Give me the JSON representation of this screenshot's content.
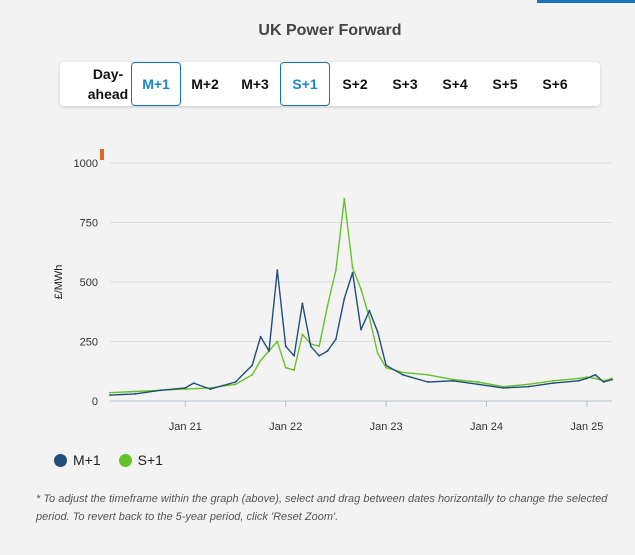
{
  "title": "UK Power Forward",
  "tabs": [
    {
      "label": "Day-ahead",
      "active": false
    },
    {
      "label": "M+1",
      "active": true
    },
    {
      "label": "M+2",
      "active": false
    },
    {
      "label": "M+3",
      "active": false
    },
    {
      "label": "S+1",
      "active": true
    },
    {
      "label": "S+2",
      "active": false
    },
    {
      "label": "S+3",
      "active": false
    },
    {
      "label": "S+4",
      "active": false
    },
    {
      "label": "S+5",
      "active": false
    },
    {
      "label": "S+6",
      "active": false
    }
  ],
  "chart_data": {
    "type": "line",
    "ylabel": "£/MWh",
    "yticks": [
      0,
      250,
      500,
      750,
      1000
    ],
    "ylim": [
      0,
      1000
    ],
    "xticks": [
      "Jan 21",
      "Jan 22",
      "Jan 23",
      "Jan 24",
      "Jan 25"
    ],
    "xlim": [
      "2020-04",
      "2025-04"
    ],
    "grid": true,
    "legend_position": "bottom-left",
    "series": [
      {
        "name": "M+1",
        "color": "#1f4e79",
        "x": [
          "2020-04",
          "2020-07",
          "2020-10",
          "2021-01",
          "2021-02",
          "2021-04",
          "2021-07",
          "2021-09",
          "2021-10",
          "2021-11",
          "2021-12",
          "2022-01",
          "2022-02",
          "2022-03",
          "2022-04",
          "2022-05",
          "2022-06",
          "2022-07",
          "2022-08",
          "2022-09",
          "2022-10",
          "2022-11",
          "2022-12",
          "2023-01",
          "2023-03",
          "2023-06",
          "2023-09",
          "2023-12",
          "2024-03",
          "2024-06",
          "2024-09",
          "2024-12",
          "2025-01",
          "2025-02",
          "2025-03",
          "2025-04"
        ],
        "values": [
          25,
          30,
          45,
          55,
          75,
          50,
          80,
          150,
          270,
          210,
          550,
          230,
          190,
          410,
          230,
          190,
          210,
          260,
          430,
          540,
          300,
          380,
          290,
          150,
          110,
          80,
          85,
          70,
          55,
          60,
          75,
          85,
          95,
          110,
          80,
          90
        ]
      },
      {
        "name": "S+1",
        "color": "#66c22a",
        "x": [
          "2020-04",
          "2020-07",
          "2020-10",
          "2021-01",
          "2021-04",
          "2021-07",
          "2021-09",
          "2021-10",
          "2021-12",
          "2022-01",
          "2022-02",
          "2022-03",
          "2022-04",
          "2022-05",
          "2022-06",
          "2022-07",
          "2022-08",
          "2022-09",
          "2022-10",
          "2022-11",
          "2022-12",
          "2023-01",
          "2023-03",
          "2023-06",
          "2023-09",
          "2023-12",
          "2024-03",
          "2024-06",
          "2024-09",
          "2024-12",
          "2025-01",
          "2025-02",
          "2025-03",
          "2025-04"
        ],
        "values": [
          35,
          40,
          45,
          50,
          55,
          70,
          110,
          170,
          250,
          140,
          130,
          280,
          240,
          230,
          400,
          550,
          850,
          560,
          470,
          350,
          200,
          140,
          120,
          110,
          90,
          80,
          60,
          70,
          85,
          95,
          100,
          95,
          85,
          95
        ]
      }
    ]
  },
  "footnote": "* To adjust the timeframe within the graph (above), select and drag between dates horizontally to change the selected period. To revert back to the 5-year period, click 'Reset Zoom'."
}
